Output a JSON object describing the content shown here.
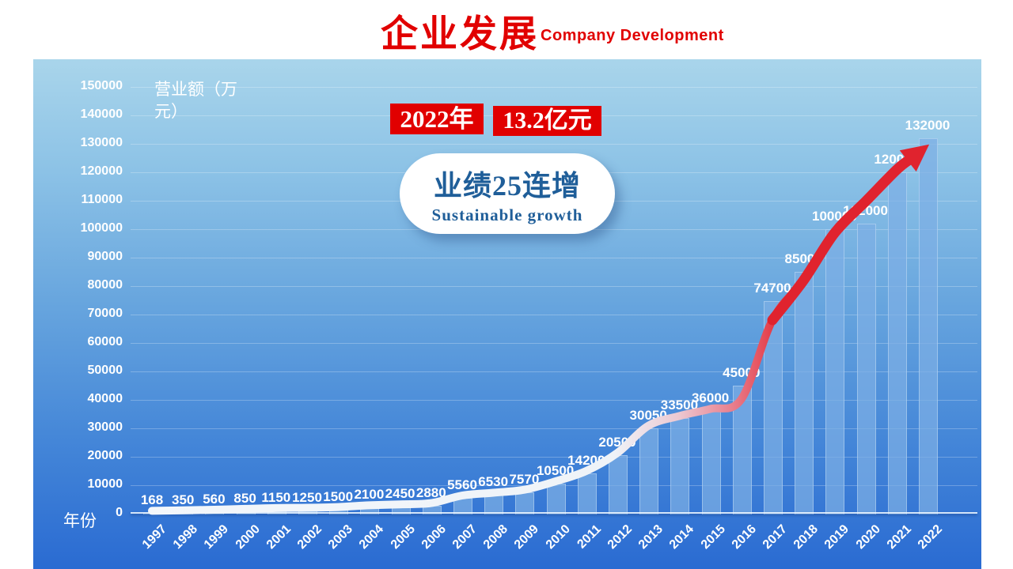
{
  "header": {
    "title": "企业发展",
    "subtitle": "Company Development",
    "title_color": "#e10000"
  },
  "callout": {
    "year": "2022年",
    "amount": "13.2亿元",
    "box_color": "#e10000",
    "text_color": "#ffffff"
  },
  "bubble": {
    "line1": "业绩25连增",
    "line2": "Sustainable growth",
    "text_color": "#1f5e99"
  },
  "chart_data": {
    "type": "bar",
    "title": "",
    "xlabel": "年份",
    "ylabel": "营业额（万元）",
    "categories": [
      "1997",
      "1998",
      "1999",
      "2000",
      "2001",
      "2002",
      "2003",
      "2004",
      "2005",
      "2006",
      "2007",
      "2008",
      "2009",
      "2010",
      "2011",
      "2012",
      "2013",
      "2014",
      "2015",
      "2016",
      "2017",
      "2018",
      "2019",
      "2020",
      "2021",
      "2022"
    ],
    "values": [
      168,
      350,
      560,
      850,
      1150,
      1250,
      1500,
      2100,
      2450,
      2880,
      5560,
      6530,
      7570,
      10500,
      14200,
      20500,
      30050,
      33500,
      36000,
      45000,
      74700,
      85000,
      100000,
      102000,
      120000,
      132000
    ],
    "ylim": [
      0,
      150000
    ],
    "ytick_step": 10000,
    "grid": true,
    "legend": null,
    "annotations": {
      "trend_arrow": "white-to-red smoothed arrow along bar tops ending at 2022"
    },
    "colors": {
      "panel_top": "#a9d5eb",
      "panel_bottom": "#2a6bd2",
      "bar": "rgba(125,175,228,0.72)",
      "data_label": "#ffffff",
      "trend_start": "#f3f7fb",
      "trend_end": "#de1f2a",
      "arrow_red": "#e0232e"
    }
  }
}
